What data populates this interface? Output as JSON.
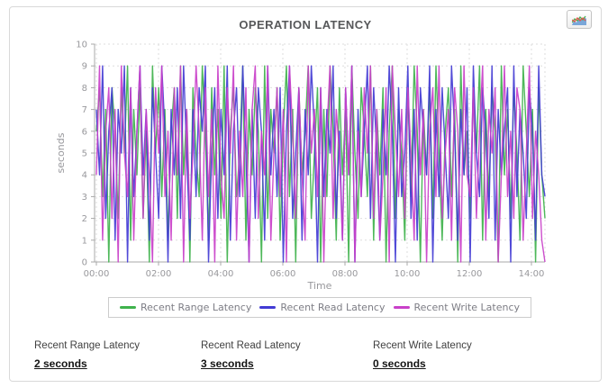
{
  "icons": {
    "toolbar_button": "mini-area-chart-icon"
  },
  "chart_data": {
    "type": "line",
    "title": "OPERATION LATENCY",
    "xlabel": "Time",
    "ylabel": "seconds",
    "ylim": [
      0,
      10
    ],
    "y_ticks": [
      0,
      1,
      2,
      3,
      4,
      5,
      6,
      7,
      8,
      9,
      10
    ],
    "x_tick_labels": [
      "00:00",
      "02:00",
      "04:00",
      "06:00",
      "08:00",
      "10:00",
      "12:00",
      "14:00"
    ],
    "x_span_hours": 14.4,
    "grid": "dashed",
    "legend_position": "bottom",
    "axis_color": "#a8a8a8",
    "grid_color": "#dedede",
    "tick_label_color": "#98989c",
    "series": [
      {
        "name": "Recent Range Latency",
        "color": "#3fb24c",
        "values": [
          6,
          8,
          3,
          7,
          0,
          8,
          6,
          2,
          8,
          5,
          9,
          1,
          7,
          4,
          8,
          2,
          6,
          0,
          9,
          5,
          8,
          3,
          7,
          1,
          6,
          8,
          2,
          9,
          4,
          7,
          0,
          8,
          5,
          3,
          9,
          6,
          1,
          8,
          4,
          7,
          2,
          9,
          0,
          6,
          8,
          3,
          5,
          9,
          1,
          7,
          4,
          8,
          6,
          0,
          9,
          2,
          7,
          5,
          8,
          1,
          6,
          9,
          3,
          7,
          0,
          8,
          4,
          6,
          9,
          2,
          5,
          8,
          0,
          7,
          3,
          9,
          6,
          1,
          8,
          4,
          7,
          0,
          9,
          5,
          2,
          8,
          6,
          3,
          9,
          1,
          7,
          4,
          8,
          0,
          6,
          9,
          2,
          7,
          5,
          1,
          8,
          3,
          9,
          6,
          0,
          7,
          4,
          8,
          2,
          9,
          5,
          1,
          6,
          8,
          3,
          7,
          0,
          9,
          4,
          6,
          2,
          8,
          5,
          9,
          1,
          7,
          3,
          8,
          6,
          0,
          9,
          4,
          7,
          2,
          8,
          5,
          1,
          9,
          6,
          3,
          7,
          0,
          8,
          4,
          2
        ]
      },
      {
        "name": "Recent Read Latency",
        "color": "#423bd4",
        "values": [
          7,
          4,
          9,
          2,
          6,
          8,
          1,
          7,
          5,
          9,
          0,
          8,
          3,
          6,
          9,
          4,
          7,
          1,
          8,
          5,
          2,
          9,
          6,
          0,
          7,
          4,
          8,
          2,
          9,
          5,
          1,
          7,
          3,
          8,
          6,
          9,
          0,
          5,
          8,
          2,
          7,
          4,
          9,
          1,
          6,
          8,
          3,
          9,
          5,
          0,
          7,
          2,
          8,
          6,
          1,
          9,
          4,
          7,
          3,
          8,
          0,
          6,
          9,
          2,
          5,
          8,
          1,
          7,
          4,
          9,
          6,
          0,
          8,
          3,
          7,
          5,
          9,
          2,
          6,
          1,
          8,
          4,
          9,
          0,
          7,
          3,
          6,
          9,
          2,
          8,
          5,
          1,
          7,
          4,
          9,
          6,
          0,
          8,
          3,
          5,
          9,
          2,
          7,
          1,
          8,
          6,
          4,
          9,
          0,
          7,
          3,
          8,
          5,
          2,
          9,
          6,
          1,
          7,
          4,
          8,
          0,
          9,
          5,
          3,
          8,
          6,
          2,
          9,
          1,
          7,
          4,
          6,
          8,
          0,
          9,
          3,
          7,
          5,
          2,
          8,
          6,
          1,
          9,
          4,
          3
        ]
      },
      {
        "name": "Recent Write Latency",
        "color": "#c940c9",
        "values": [
          4,
          9,
          1,
          6,
          8,
          2,
          7,
          0,
          9,
          5,
          3,
          8,
          1,
          6,
          9,
          2,
          7,
          4,
          0,
          8,
          5,
          9,
          3,
          6,
          1,
          8,
          4,
          9,
          0,
          7,
          2,
          5,
          9,
          6,
          1,
          8,
          3,
          7,
          0,
          9,
          4,
          2,
          8,
          5,
          9,
          1,
          6,
          3,
          8,
          0,
          7,
          9,
          2,
          6,
          4,
          9,
          1,
          5,
          8,
          3,
          7,
          0,
          9,
          6,
          2,
          8,
          4,
          1,
          9,
          5,
          7,
          3,
          8,
          0,
          6,
          9,
          2,
          7,
          5,
          1,
          8,
          4,
          9,
          0,
          6,
          3,
          8,
          5,
          9,
          2,
          7,
          1,
          4,
          8,
          0,
          9,
          6,
          3,
          7,
          2,
          8,
          5,
          1,
          9,
          4,
          7,
          0,
          6,
          8,
          3,
          9,
          2,
          5,
          7,
          1,
          8,
          6,
          0,
          9,
          4,
          3,
          8,
          2,
          6,
          9,
          1,
          7,
          5,
          8,
          0,
          4,
          9,
          3,
          6,
          2,
          8,
          7,
          1,
          5,
          9,
          2,
          6,
          4,
          1,
          0
        ]
      }
    ]
  },
  "footer_stats": [
    {
      "label": "Recent Range Latency",
      "value": "2 seconds"
    },
    {
      "label": "Recent Read Latency",
      "value": "3 seconds"
    },
    {
      "label": "Recent Write Latency",
      "value": "0 seconds"
    }
  ]
}
